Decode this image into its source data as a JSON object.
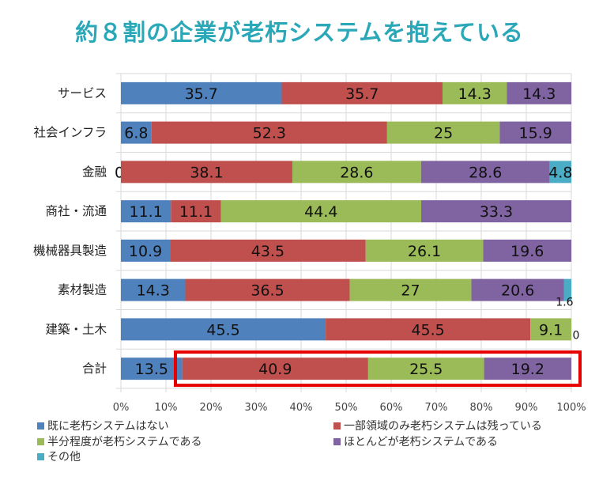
{
  "chart_data": {
    "type": "bar",
    "orientation": "horizontal",
    "stacked": true,
    "percent": true,
    "title": "約８割の企業が老朽システムを抱えている",
    "categories": [
      "サービス",
      "社会インフラ",
      "金融",
      "商社・流通",
      "機械器具製造",
      "素材製造",
      "建築・土木",
      "合計"
    ],
    "series": [
      {
        "name": "既に老朽システムはない",
        "color": "#4f81bd",
        "values": [
          35.7,
          6.8,
          0,
          11.1,
          10.9,
          14.3,
          45.5,
          13.5
        ]
      },
      {
        "name": "一部領域のみ老朽システムは残っている",
        "color": "#c0504d",
        "values": [
          35.7,
          52.3,
          38.1,
          11.1,
          43.5,
          36.5,
          45.5,
          40.9
        ]
      },
      {
        "name": "半分程度が老朽システムである",
        "color": "#9bbb59",
        "values": [
          14.3,
          25,
          28.6,
          44.4,
          26.1,
          27,
          9.1,
          25.5
        ]
      },
      {
        "name": "ほとんどが老朽システムである",
        "color": "#8064a2",
        "values": [
          14.3,
          15.9,
          28.6,
          33.3,
          19.6,
          20.6,
          0,
          19.2
        ]
      },
      {
        "name": "その他",
        "color": "#4bacc6",
        "values": [
          0,
          0,
          4.8,
          0,
          0,
          1.6,
          0,
          0
        ]
      }
    ],
    "data_labels": [
      [
        "35.7",
        "35.7",
        "14.3",
        "14.3",
        ""
      ],
      [
        "6.8",
        "52.3",
        "25",
        "15.9",
        ""
      ],
      [
        "0",
        "38.1",
        "28.6",
        "28.6",
        "4.8"
      ],
      [
        "11.1",
        "11.1",
        "44.4",
        "33.3",
        ""
      ],
      [
        "10.9",
        "43.5",
        "26.1",
        "19.6",
        ""
      ],
      [
        "14.3",
        "36.5",
        "27",
        "20.6",
        "1.6"
      ],
      [
        "45.5",
        "45.5",
        "9.1",
        "0",
        ""
      ],
      [
        "13.5",
        "40.9",
        "25.5",
        "19.2",
        ""
      ]
    ],
    "x_ticks": [
      "0%",
      "10%",
      "20%",
      "30%",
      "40%",
      "50%",
      "60%",
      "70%",
      "80%",
      "90%",
      "100%"
    ],
    "xlim": [
      0,
      100
    ],
    "grid": true,
    "legend_position": "bottom",
    "highlight": {
      "category": "合計",
      "color": "#e60000"
    }
  }
}
